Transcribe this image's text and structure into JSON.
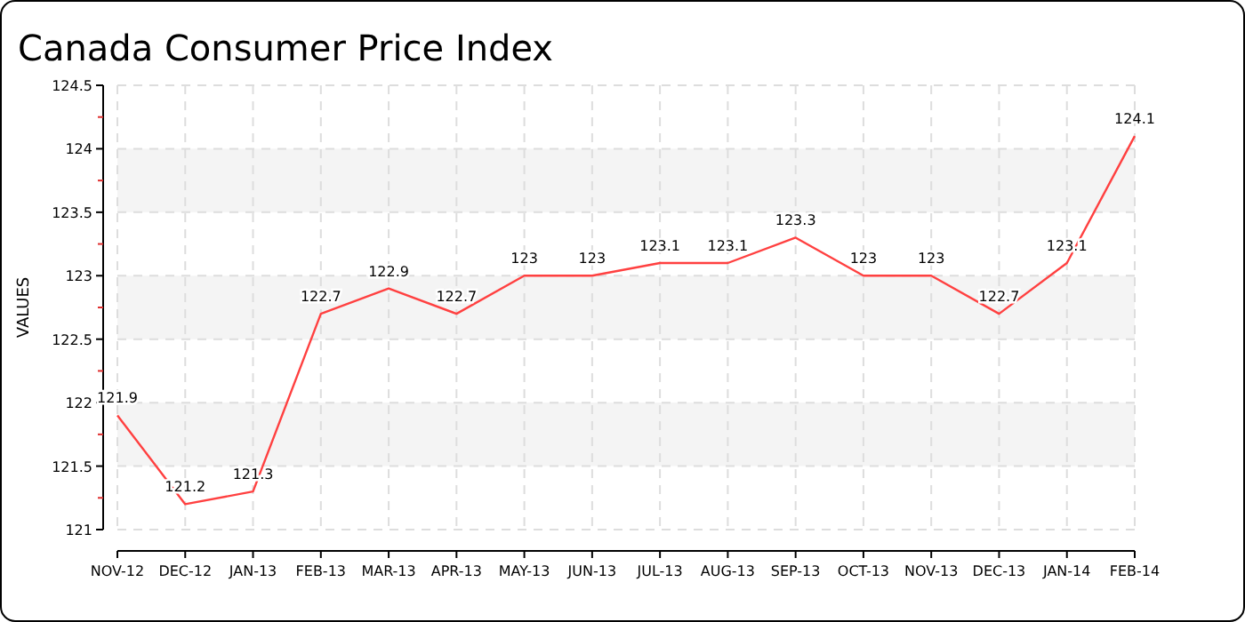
{
  "chart_data": {
    "type": "line",
    "title": "Canada Consumer Price Index",
    "ylabel": "VALUES",
    "categories": [
      "NOV-12",
      "DEC-12",
      "JAN-13",
      "FEB-13",
      "MAR-13",
      "APR-13",
      "MAY-13",
      "JUN-13",
      "JUL-13",
      "AUG-13",
      "SEP-13",
      "OCT-13",
      "NOV-13",
      "DEC-13",
      "JAN-14",
      "FEB-14"
    ],
    "series": [
      {
        "color": "#ff4040",
        "values": [
          121.9,
          121.2,
          121.3,
          122.7,
          122.9,
          122.7,
          123,
          123,
          123.1,
          123.1,
          123.3,
          123,
          123,
          122.7,
          123.1,
          124.1
        ]
      }
    ],
    "ylim": [
      121,
      124.5
    ],
    "yticks": [
      121,
      {
        "value": 121.25,
        "label": null
      },
      121.5,
      {
        "value": 121.75,
        "label": null
      },
      122,
      {
        "value": 122.25,
        "label": null
      },
      122.5,
      {
        "value": 122.75,
        "label": null
      },
      123,
      {
        "value": 123.25,
        "label": null
      },
      123.5,
      {
        "value": 123.75,
        "label": null
      },
      124,
      {
        "value": 124.25,
        "label": null
      },
      124.5
    ],
    "grid": true,
    "data_labels": true,
    "marker": "none",
    "line_style": "solid"
  }
}
